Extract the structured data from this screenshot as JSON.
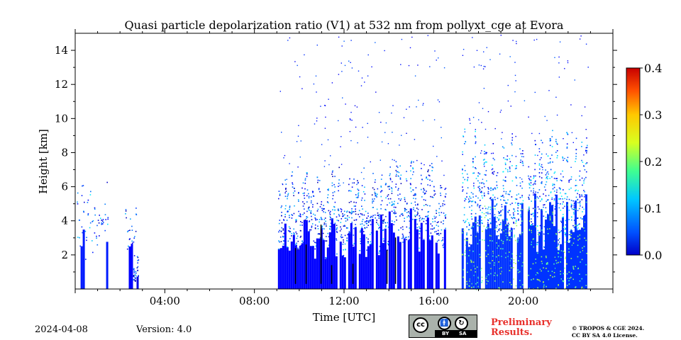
{
  "chart_data": {
    "type": "heatmap",
    "title": "Quasi particle depolarization ratio (V1) at 532 nm from pollyxt_cge at Evora",
    "xlabel": "Time [UTC]",
    "ylabel": "Height [km]",
    "xlim_hours": [
      0,
      24
    ],
    "ylim_km": [
      0,
      15
    ],
    "x_ticks": [
      {
        "value": 4,
        "label": "04:00"
      },
      {
        "value": 8,
        "label": "08:00"
      },
      {
        "value": 12,
        "label": "12:00"
      },
      {
        "value": 16,
        "label": "16:00"
      },
      {
        "value": 20,
        "label": "20:00"
      }
    ],
    "y_ticks": [
      {
        "value": 2,
        "label": "2"
      },
      {
        "value": 4,
        "label": "4"
      },
      {
        "value": 6,
        "label": "6"
      },
      {
        "value": 8,
        "label": "8"
      },
      {
        "value": 10,
        "label": "10"
      },
      {
        "value": 12,
        "label": "12"
      },
      {
        "value": 14,
        "label": "14"
      }
    ],
    "colorbar": {
      "min": 0.0,
      "max": 0.4,
      "colormap": "jet",
      "ticks": [
        {
          "value": 0.0,
          "label": "0.0"
        },
        {
          "value": 0.1,
          "label": "0.1"
        },
        {
          "value": 0.2,
          "label": "0.2"
        },
        {
          "value": 0.3,
          "label": "0.3"
        },
        {
          "value": 0.4,
          "label": "0.4"
        }
      ]
    },
    "colors": {
      "low": "#1f6fd0",
      "mid": "#0fb0c0",
      "high_speckle": "#9ae060",
      "dark_streaks": "#000000"
    },
    "data_segments": [
      {
        "t_start": 0.05,
        "t_end": 1.4,
        "top_km": 4.8,
        "value": 0.06,
        "density": 0.25
      },
      {
        "t_start": 2.2,
        "t_end": 2.75,
        "top_km": 3.7,
        "value": 0.05,
        "density": 0.25
      },
      {
        "t_start": 2.55,
        "t_end": 2.75,
        "top_km": 1.6,
        "value": 0.04,
        "density": 0.8
      },
      {
        "t_start": 9.05,
        "t_end": 16.5,
        "top_km": 5.5,
        "value": 0.05,
        "density": 0.75
      },
      {
        "t_start": 17.25,
        "t_end": 20.0,
        "top_km": 6.8,
        "value": 0.07,
        "density": 0.9
      },
      {
        "t_start": 20.2,
        "t_end": 22.8,
        "top_km": 6.8,
        "value": 0.07,
        "density": 0.9
      }
    ],
    "gaps": [
      {
        "t_start": 16.5,
        "t_end": 17.25
      },
      {
        "t_start": 20.0,
        "t_end": 20.2
      }
    ]
  },
  "footer": {
    "date": "2024-04-08",
    "version": "Version: 4.0",
    "preliminary_line1": "Preliminary",
    "preliminary_line2": "Results.",
    "copyright_line1": "© TROPOS & CGE 2024.",
    "copyright_line2": "CC BY SA 4.0 License.",
    "license_badge": {
      "cc": "cc",
      "by": "BY",
      "sa": "SA"
    }
  }
}
